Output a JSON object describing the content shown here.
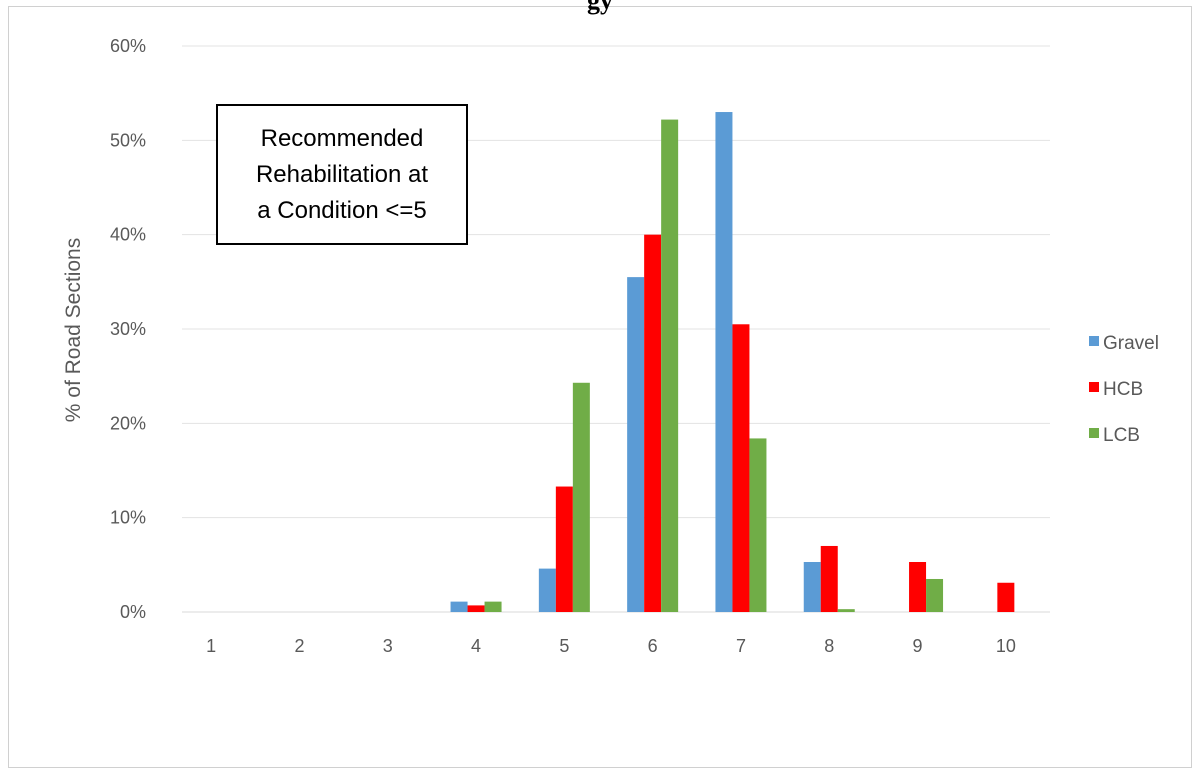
{
  "page_title": "gy",
  "chart_data": {
    "type": "bar",
    "categories": [
      "1",
      "2",
      "3",
      "4",
      "5",
      "6",
      "7",
      "8",
      "9",
      "10"
    ],
    "series": [
      {
        "name": "Gravel",
        "color": "#5b9bd5",
        "values": [
          0,
          0,
          0,
          1.1,
          4.6,
          35.5,
          53.0,
          5.3,
          0,
          0
        ]
      },
      {
        "name": "HCB",
        "color": "#ff0000",
        "values": [
          0,
          0,
          0,
          0.7,
          13.3,
          40.0,
          30.5,
          7.0,
          5.3,
          3.1
        ]
      },
      {
        "name": "LCB",
        "color": "#70ad47",
        "values": [
          0,
          0,
          0,
          1.1,
          24.3,
          52.2,
          18.4,
          0.3,
          3.5,
          0
        ]
      }
    ],
    "ylabel": "% of Road Sections",
    "xlabel": "",
    "ylim": [
      0,
      60
    ],
    "yticks": [
      "0%",
      "10%",
      "20%",
      "30%",
      "40%",
      "50%",
      "60%"
    ],
    "grid": true,
    "legend_position": "right",
    "annotation": [
      "Recommended",
      "Rehabilitation at",
      "a Condition <=5"
    ]
  }
}
